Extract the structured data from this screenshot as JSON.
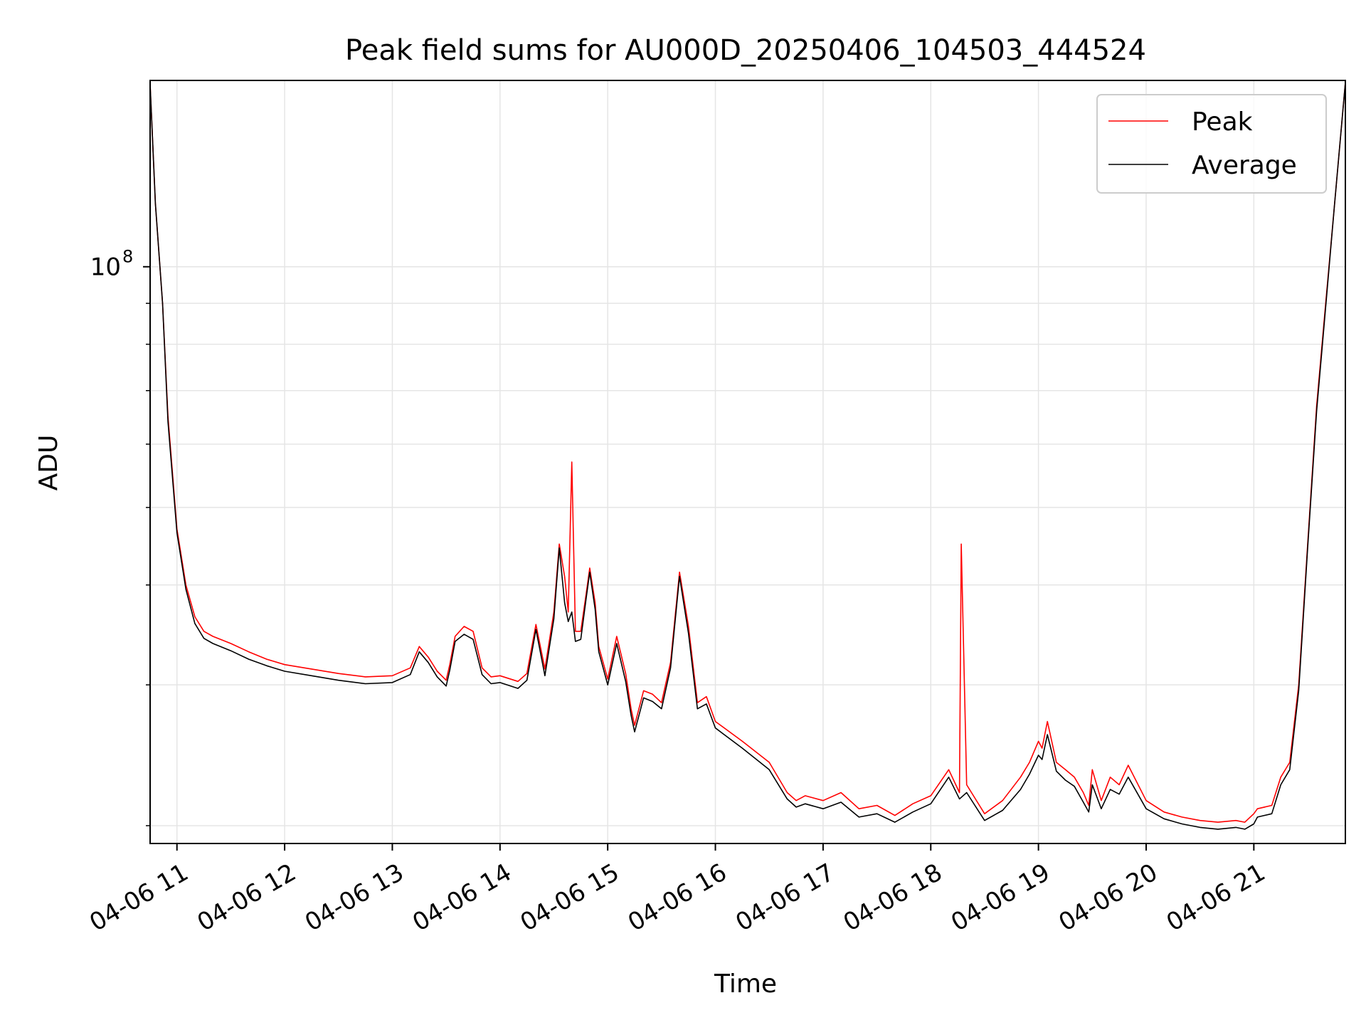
{
  "chart_data": {
    "type": "line",
    "title": "Peak field sums for AU000D_20250406_104503_444524",
    "xlabel": "Time",
    "ylabel": "ADU",
    "y_scale": "log",
    "grid": true,
    "legend_position": "top-right",
    "x_range": [
      "2025-04-06 10:45:03",
      "2025-04-06 21:51:00"
    ],
    "y_range": [
      19000000,
      171000000
    ],
    "x_ticks": [
      {
        "time": "2025-04-06 11:00",
        "label": "04-06 11"
      },
      {
        "time": "2025-04-06 12:00",
        "label": "04-06 12"
      },
      {
        "time": "2025-04-06 13:00",
        "label": "04-06 13"
      },
      {
        "time": "2025-04-06 14:00",
        "label": "04-06 14"
      },
      {
        "time": "2025-04-06 15:00",
        "label": "04-06 15"
      },
      {
        "time": "2025-04-06 16:00",
        "label": "04-06 16"
      },
      {
        "time": "2025-04-06 17:00",
        "label": "04-06 17"
      },
      {
        "time": "2025-04-06 18:00",
        "label": "04-06 18"
      },
      {
        "time": "2025-04-06 19:00",
        "label": "04-06 19"
      },
      {
        "time": "2025-04-06 20:00",
        "label": "04-06 20"
      },
      {
        "time": "2025-04-06 21:00",
        "label": "04-06 21"
      }
    ],
    "y_major_ticks": [
      {
        "value": 100000000,
        "base": "10",
        "exponent": "8"
      }
    ],
    "y_minor_ticks": [
      20000000,
      30000000,
      40000000,
      50000000,
      60000000,
      70000000,
      80000000,
      90000000
    ],
    "series": [
      {
        "name": "Peak",
        "color": "#ff0000",
        "x": [
          "10:45",
          "10:48",
          "10:52",
          "10:55",
          "11:00",
          "11:05",
          "11:10",
          "11:15",
          "11:20",
          "11:30",
          "11:40",
          "11:50",
          "12:00",
          "12:15",
          "12:30",
          "12:45",
          "13:00",
          "13:10",
          "13:15",
          "13:20",
          "13:25",
          "13:30",
          "13:32",
          "13:35",
          "13:40",
          "13:45",
          "13:50",
          "13:55",
          "14:00",
          "14:10",
          "14:15",
          "14:20",
          "14:25",
          "14:30",
          "14:33",
          "14:36",
          "14:38",
          "14:40",
          "14:42",
          "14:45",
          "14:48",
          "14:50",
          "14:53",
          "14:55",
          "15:00",
          "15:05",
          "15:10",
          "15:13",
          "15:15",
          "15:20",
          "15:25",
          "15:30",
          "15:35",
          "15:40",
          "15:45",
          "15:50",
          "15:55",
          "16:00",
          "16:15",
          "16:30",
          "16:40",
          "16:45",
          "16:50",
          "17:00",
          "17:10",
          "17:20",
          "17:30",
          "17:40",
          "17:50",
          "18:00",
          "18:10",
          "18:16",
          "18:17",
          "18:20",
          "18:30",
          "18:40",
          "18:50",
          "18:55",
          "19:00",
          "19:02",
          "19:05",
          "19:10",
          "19:15",
          "19:20",
          "19:25",
          "19:28",
          "19:30",
          "19:35",
          "19:40",
          "19:45",
          "19:50",
          "20:00",
          "20:10",
          "20:20",
          "20:30",
          "20:40",
          "20:50",
          "20:55",
          "21:00",
          "21:02",
          "21:10",
          "21:15",
          "21:20",
          "21:25",
          "21:30",
          "21:35",
          "21:40",
          "21:45",
          "21:51"
        ],
        "values": [
          170000000,
          120000000,
          90000000,
          65000000,
          47000000,
          40000000,
          36500000,
          35000000,
          34500000,
          33800000,
          33000000,
          32300000,
          31800000,
          31400000,
          31000000,
          30700000,
          30800000,
          31500000,
          33500000,
          32500000,
          31200000,
          30400000,
          31800000,
          34500000,
          35500000,
          35000000,
          31500000,
          30700000,
          30800000,
          30300000,
          31000000,
          35700000,
          31400000,
          37000000,
          45000000,
          41000000,
          37000000,
          57000000,
          35000000,
          35000000,
          39000000,
          42000000,
          38000000,
          33500000,
          30500000,
          34500000,
          31000000,
          28000000,
          26700000,
          29500000,
          29200000,
          28500000,
          32000000,
          41500000,
          35500000,
          28500000,
          29000000,
          27000000,
          25500000,
          24000000,
          22000000,
          21500000,
          21800000,
          21500000,
          22000000,
          21000000,
          21200000,
          20600000,
          21300000,
          21800000,
          23500000,
          22000000,
          45000000,
          22500000,
          20700000,
          21500000,
          23000000,
          24000000,
          25500000,
          25000000,
          27000000,
          24000000,
          23500000,
          23000000,
          22000000,
          21200000,
          23500000,
          21500000,
          23000000,
          22500000,
          23800000,
          21500000,
          20800000,
          20500000,
          20300000,
          20200000,
          20300000,
          20200000,
          20700000,
          21000000,
          21200000,
          23000000,
          24000000,
          30000000,
          45000000,
          67000000,
          90000000,
          120000000,
          170000000
        ]
      },
      {
        "name": "Average",
        "color": "#000000",
        "x": [
          "10:45",
          "10:48",
          "10:52",
          "10:55",
          "11:00",
          "11:05",
          "11:10",
          "11:15",
          "11:20",
          "11:30",
          "11:40",
          "11:50",
          "12:00",
          "12:15",
          "12:30",
          "12:45",
          "13:00",
          "13:10",
          "13:15",
          "13:20",
          "13:25",
          "13:30",
          "13:32",
          "13:35",
          "13:40",
          "13:45",
          "13:50",
          "13:55",
          "14:00",
          "14:10",
          "14:15",
          "14:20",
          "14:25",
          "14:30",
          "14:33",
          "14:36",
          "14:38",
          "14:40",
          "14:42",
          "14:45",
          "14:48",
          "14:50",
          "14:53",
          "14:55",
          "15:00",
          "15:05",
          "15:10",
          "15:13",
          "15:15",
          "15:20",
          "15:25",
          "15:30",
          "15:35",
          "15:40",
          "15:45",
          "15:50",
          "15:55",
          "16:00",
          "16:15",
          "16:30",
          "16:40",
          "16:45",
          "16:50",
          "17:00",
          "17:10",
          "17:20",
          "17:30",
          "17:40",
          "17:50",
          "18:00",
          "18:10",
          "18:16",
          "18:17",
          "18:20",
          "18:30",
          "18:40",
          "18:50",
          "18:55",
          "19:00",
          "19:02",
          "19:05",
          "19:10",
          "19:15",
          "19:20",
          "19:25",
          "19:28",
          "19:30",
          "19:35",
          "19:40",
          "19:45",
          "19:50",
          "20:00",
          "20:10",
          "20:20",
          "20:30",
          "20:40",
          "20:50",
          "20:55",
          "21:00",
          "21:02",
          "21:10",
          "21:15",
          "21:20",
          "21:25",
          "21:30",
          "21:35",
          "21:40",
          "21:45",
          "21:51"
        ],
        "values": [
          170000000,
          120000000,
          90000000,
          64000000,
          46500000,
          39500000,
          35800000,
          34300000,
          33800000,
          33100000,
          32300000,
          31700000,
          31200000,
          30800000,
          30400000,
          30100000,
          30200000,
          30900000,
          33000000,
          32000000,
          30700000,
          29900000,
          31300000,
          34000000,
          34700000,
          34200000,
          30900000,
          30100000,
          30200000,
          29700000,
          30400000,
          35200000,
          30800000,
          36300000,
          44500000,
          38000000,
          36000000,
          37000000,
          34000000,
          34200000,
          38500000,
          41500000,
          37300000,
          33000000,
          30000000,
          33800000,
          30300000,
          27500000,
          26200000,
          28900000,
          28600000,
          28000000,
          31500000,
          41000000,
          34800000,
          28000000,
          28400000,
          26500000,
          25000000,
          23500000,
          21600000,
          21100000,
          21300000,
          21000000,
          21400000,
          20500000,
          20700000,
          20200000,
          20800000,
          21300000,
          23000000,
          21600000,
          21700000,
          22000000,
          20300000,
          20900000,
          22200000,
          23200000,
          24500000,
          24200000,
          26000000,
          23400000,
          22800000,
          22400000,
          21400000,
          20800000,
          22500000,
          21000000,
          22200000,
          21900000,
          23000000,
          21000000,
          20400000,
          20100000,
          19900000,
          19800000,
          19900000,
          19800000,
          20100000,
          20500000,
          20700000,
          22500000,
          23500000,
          29500000,
          44500000,
          66000000,
          89000000,
          120000000,
          170000000
        ]
      }
    ]
  },
  "colors": {
    "peak": "#ff0000",
    "average": "#000000",
    "grid": "#e5e5e5",
    "axis": "#000000",
    "legend_border": "#cccccc"
  }
}
